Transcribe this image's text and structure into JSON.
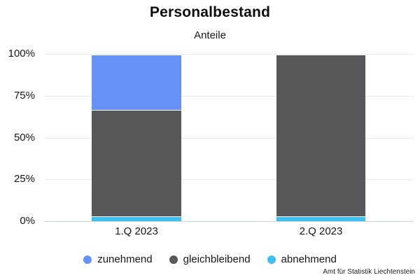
{
  "header": {
    "title": "Personalbestand",
    "subtitle": "Anteile"
  },
  "chart_data": {
    "type": "bar",
    "stacked": true,
    "orientation": "vertical",
    "title": "Personalbestand",
    "subtitle": "Anteile",
    "categories": [
      "1.Q 2023",
      "2.Q 2023"
    ],
    "series": [
      {
        "name": "zunehmend",
        "color": "#6691f7",
        "values": [
          33,
          0
        ]
      },
      {
        "name": "gleichbleibend",
        "color": "#58585a",
        "values": [
          64,
          97
        ]
      },
      {
        "name": "abnehmend",
        "color": "#3ec0ee",
        "values": [
          3,
          3
        ]
      }
    ],
    "unit": "%",
    "ylim": [
      0,
      100
    ],
    "yticks": [
      "100%",
      "75%",
      "50%",
      "25%",
      "0%"
    ],
    "grid": "horizontal",
    "legend_position": "bottom"
  },
  "footer": {
    "source": "Amt für Statistik Liechtenstein"
  }
}
